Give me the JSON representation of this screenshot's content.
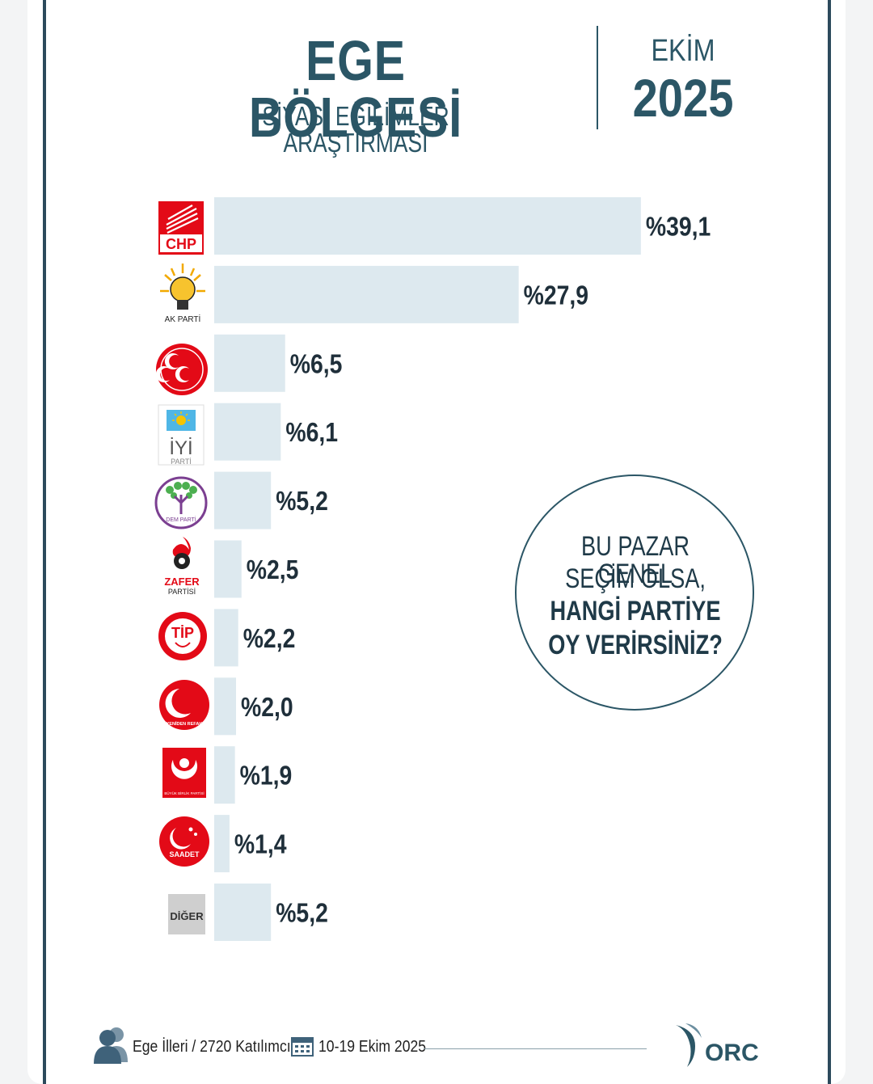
{
  "header": {
    "title": "EGE BÖLGESİ",
    "subtitle": "SİYASİ EĞİLİMLER ARAŞTIRMASI",
    "month": "EKİM",
    "year": "2025"
  },
  "question": {
    "line1": "BU PAZAR GENEL",
    "line2": "SEÇİM OLSA,",
    "line3": "HANGİ PARTİYE",
    "line4": "OY VERİRSİNİZ?"
  },
  "footer": {
    "sample": "Ege İlleri / 2720 Katılımcı",
    "dates": "10-19 Ekim 2025",
    "brand": "ORC"
  },
  "colors": {
    "bar": "#dde9ef",
    "text_dark": "#1f2f3a",
    "accent": "#2b5666"
  },
  "logo_texts": {
    "chp": "CHP",
    "ak": "AK PARTİ",
    "iyi": "İYİ",
    "iyi_sub": "PARTİ",
    "dem": "DEM PARTİ",
    "zafer": "ZAFER",
    "zafer_sub": "PARTİSİ",
    "tip": "TİP",
    "yrp": "YENİDEN REFAH",
    "bbp": "BÜYÜK BİRLİK PARTİSİ",
    "saadet": "SAADET",
    "diger": "DİĞER"
  },
  "chart_data": {
    "type": "bar",
    "orientation": "horizontal",
    "categories": [
      "CHP",
      "AK PARTİ",
      "MHP",
      "İYİ PARTİ",
      "DEM PARTİ",
      "ZAFER PARTİSİ",
      "TİP",
      "YENİDEN REFAH",
      "BÜYÜK BİRLİK PARTİSİ",
      "SAADET",
      "DİĞER"
    ],
    "values": [
      39.1,
      27.9,
      6.5,
      6.1,
      5.2,
      2.5,
      2.2,
      2.0,
      1.9,
      1.4,
      5.2
    ],
    "value_labels": [
      "%39,1",
      "%27,9",
      "%6,5",
      "%6,1",
      "%5,2",
      "%2,5",
      "%2,2",
      "%2,0",
      "%1,9",
      "%1,4",
      "%5,2"
    ],
    "title": "",
    "xlabel": "",
    "ylabel": "",
    "grid": false,
    "legend": "none"
  }
}
